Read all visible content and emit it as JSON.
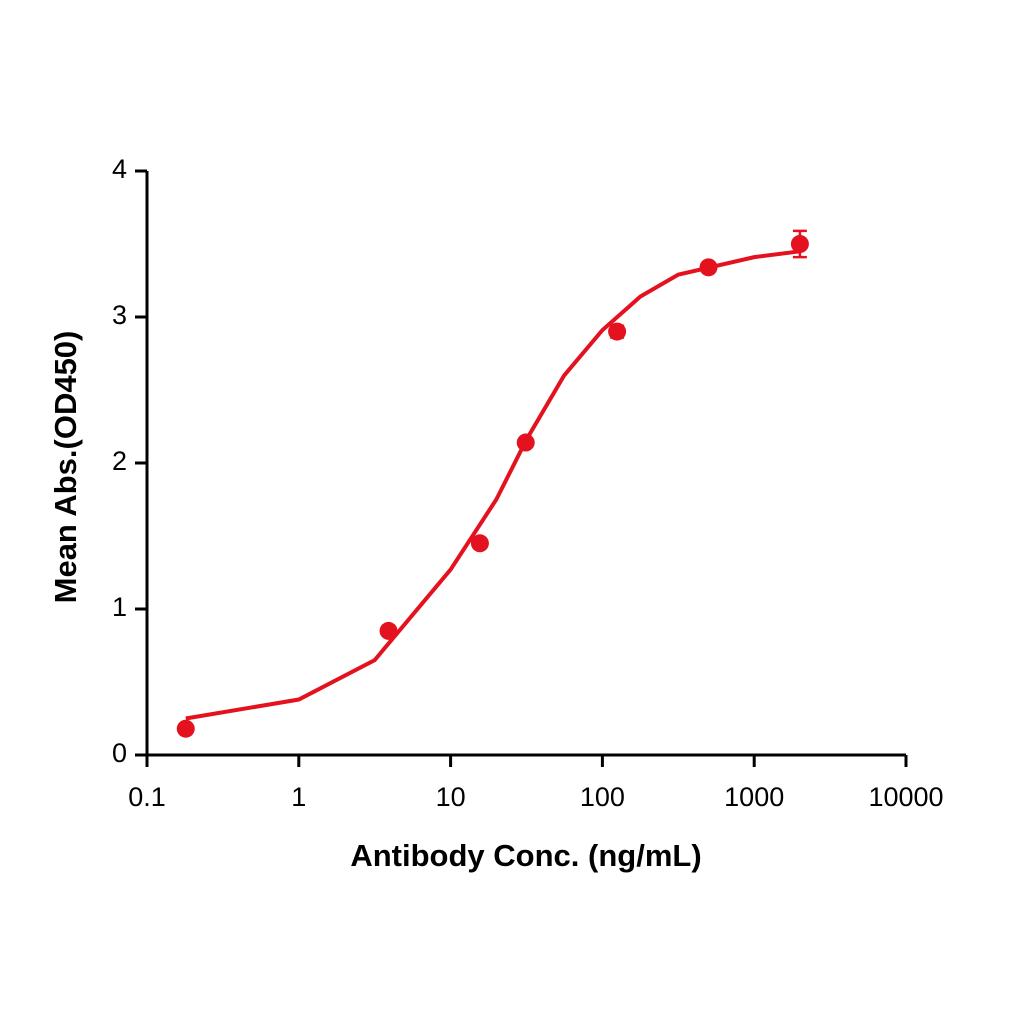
{
  "chart_data": {
    "type": "scatter",
    "x_label": "Antibody Conc. (ng/mL)",
    "y_label": "Mean Abs.(OD450)",
    "xscale": "log",
    "xlim": [
      0.1,
      10000
    ],
    "xticks": [
      0.1,
      1,
      10,
      100,
      1000,
      10000
    ],
    "ylim": [
      0,
      4
    ],
    "yticks": [
      0,
      1,
      2,
      3,
      4
    ],
    "series": [
      {
        "type": "scatter",
        "color": "#e3121e",
        "x": [
          0.18,
          3.9,
          15.6,
          31.25,
          125,
          500,
          2000
        ],
        "values": [
          0.18,
          0.85,
          1.45,
          2.14,
          2.9,
          3.34,
          3.5
        ],
        "errors": [
          0.02,
          0.02,
          0.02,
          0.02,
          0.04,
          0.02,
          0.09
        ]
      },
      {
        "type": "line",
        "color": "#e3121e",
        "x": [
          0.18,
          1,
          3.16,
          10,
          20,
          31.6,
          56,
          100,
          178,
          316,
          1000,
          2000
        ],
        "values": [
          0.25,
          0.38,
          0.65,
          1.27,
          1.75,
          2.16,
          2.6,
          2.91,
          3.14,
          3.29,
          3.41,
          3.45
        ]
      }
    ]
  }
}
